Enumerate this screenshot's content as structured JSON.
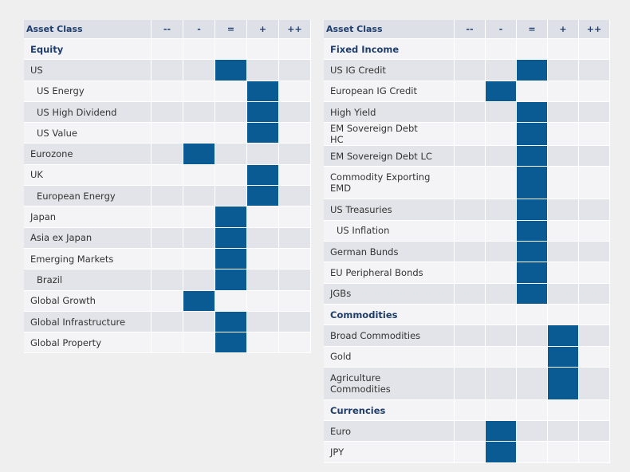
{
  "tables": [
    {
      "columns": [
        "Asset Class",
        "--",
        "-",
        "=",
        "+",
        "++"
      ],
      "rows": [
        {
          "label": "Equity",
          "section": true
        },
        {
          "label": "US",
          "rating": 2
        },
        {
          "label": "US Energy",
          "indent": true,
          "rating": 3
        },
        {
          "label": "US High Dividend",
          "indent": true,
          "rating": 3
        },
        {
          "label": "US Value",
          "indent": true,
          "rating": 3
        },
        {
          "label": "Eurozone",
          "rating": 1
        },
        {
          "label": "UK",
          "rating": 3
        },
        {
          "label": "European Energy",
          "indent": true,
          "rating": 3
        },
        {
          "label": "Japan",
          "rating": 2
        },
        {
          "label": "Asia ex Japan",
          "rating": 2
        },
        {
          "label": "Emerging Markets",
          "rating": 2
        },
        {
          "label": "Brazil",
          "indent": true,
          "rating": 2
        },
        {
          "label": "Global Growth",
          "rating": 1
        },
        {
          "label": "Global Infrastructure",
          "rating": 2
        },
        {
          "label": "Global Property",
          "rating": 2
        }
      ]
    },
    {
      "columns": [
        "Asset Class",
        "--",
        "-",
        "=",
        "+",
        "++"
      ],
      "rows": [
        {
          "label": "Fixed Income",
          "section": true
        },
        {
          "label": "US IG Credit",
          "rating": 2
        },
        {
          "label": "European IG Credit",
          "rating": 1
        },
        {
          "label": "High Yield",
          "rating": 2
        },
        {
          "label": "EM Sovereign Debt HC",
          "rating": 2
        },
        {
          "label": "EM Sovereign Debt LC",
          "rating": 2
        },
        {
          "label": "Commodity Exporting EMD",
          "rating": 2
        },
        {
          "label": "US Treasuries",
          "rating": 2
        },
        {
          "label": "US Inflation",
          "indent": true,
          "rating": 2
        },
        {
          "label": "German Bunds",
          "rating": 2
        },
        {
          "label": "EU Peripheral Bonds",
          "rating": 2
        },
        {
          "label": "JGBs",
          "rating": 2
        },
        {
          "label": "Commodities",
          "section": true
        },
        {
          "label": "Broad Commodities",
          "rating": 3
        },
        {
          "label": "Gold",
          "rating": 3
        },
        {
          "label": "Agriculture Commodities",
          "rating": 3
        },
        {
          "label": "Currencies",
          "section": true
        },
        {
          "label": "Euro",
          "rating": 1
        },
        {
          "label": "JPY",
          "rating": 1
        }
      ]
    }
  ]
}
